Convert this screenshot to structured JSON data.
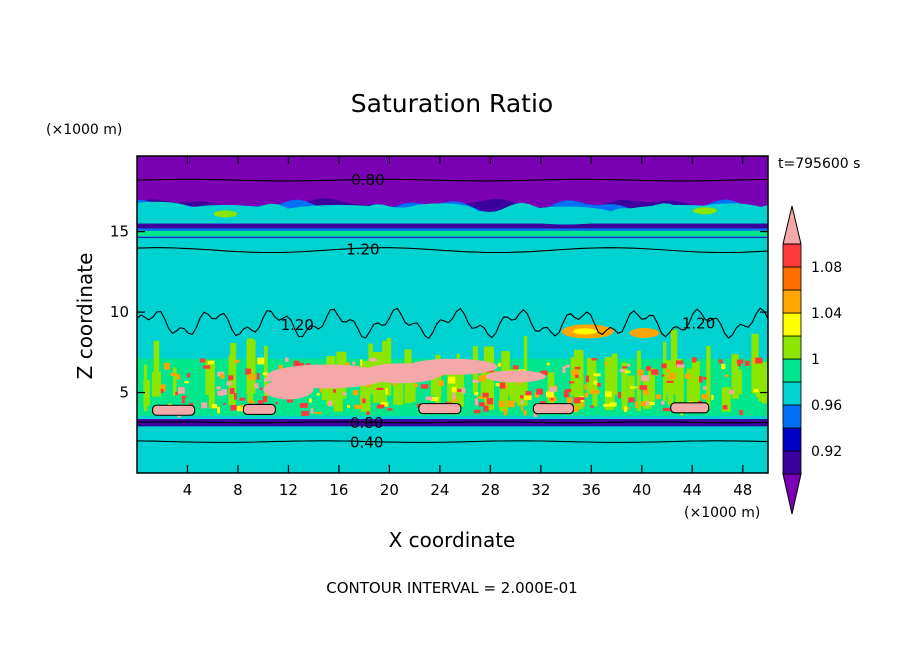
{
  "chart_data": {
    "type": "heatmap",
    "title": "Saturation Ratio",
    "xlabel": "X coordinate",
    "ylabel": "Z coordinate",
    "x_unit": "(×1000 m)",
    "y_unit": "(×1000 m)",
    "time_label": "t=795600 s",
    "footer": "CONTOUR INTERVAL = 2.000E-01",
    "xlim": [
      0,
      50
    ],
    "ylim": [
      0,
      19.7
    ],
    "x_ticks": [
      {
        "value": 4,
        "label": "4"
      },
      {
        "value": 8,
        "label": "8"
      },
      {
        "value": 12,
        "label": "12"
      },
      {
        "value": 16,
        "label": "16"
      },
      {
        "value": 20,
        "label": "20"
      },
      {
        "value": 24,
        "label": "24"
      },
      {
        "value": 28,
        "label": "28"
      },
      {
        "value": 32,
        "label": "32"
      },
      {
        "value": 36,
        "label": "36"
      },
      {
        "value": 40,
        "label": "40"
      },
      {
        "value": 44,
        "label": "44"
      },
      {
        "value": 48,
        "label": "48"
      }
    ],
    "y_ticks": [
      {
        "value": 5,
        "label": "5"
      },
      {
        "value": 10,
        "label": "10"
      },
      {
        "value": 15,
        "label": "15"
      }
    ],
    "colorbar": {
      "levels": [
        0.9,
        0.92,
        0.94,
        0.96,
        0.98,
        1.0,
        1.02,
        1.04,
        1.06,
        1.08,
        1.1
      ],
      "colors": [
        "#7a00b4",
        "#3d009c",
        "#0000c8",
        "#0070f5",
        "#00d2d2",
        "#00e68c",
        "#8ce600",
        "#ffff00",
        "#ffa500",
        "#ff6e00",
        "#ff3a3a",
        "#f5a8a8"
      ],
      "labels": [
        {
          "value": 0.92,
          "label": "0.92"
        },
        {
          "value": 0.96,
          "label": "0.96"
        },
        {
          "value": 1.0,
          "label": "1"
        },
        {
          "value": 1.04,
          "label": "1.04"
        },
        {
          "value": 1.08,
          "label": "1.08"
        }
      ]
    },
    "contour_labels": [
      {
        "label": "0.80",
        "x": 18.3,
        "z": 18.2
      },
      {
        "label": "1.20",
        "x": 17.9,
        "z": 13.9
      },
      {
        "label": "1.20",
        "x": 12.7,
        "z": 9.2
      },
      {
        "label": "1.20",
        "x": 44.5,
        "z": 9.3
      },
      {
        "label": "0.80",
        "x": 18.2,
        "z": 3.1
      },
      {
        "label": "0.40",
        "x": 18.2,
        "z": 1.9
      }
    ]
  }
}
